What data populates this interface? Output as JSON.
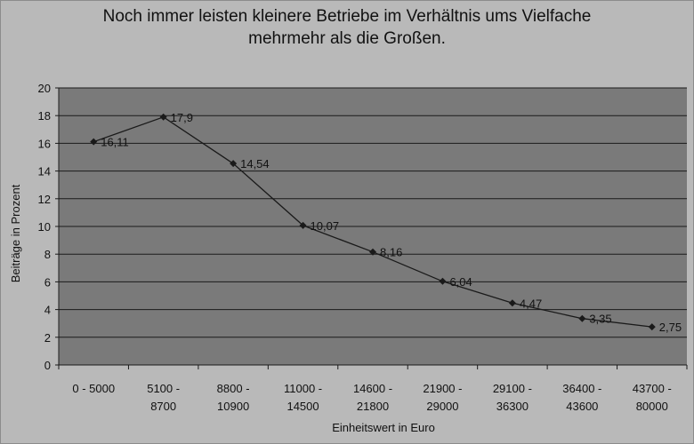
{
  "chart_data": {
    "type": "line",
    "title_line1": "Noch immer leisten kleinere Betriebe im Verhältnis ums Vielfache",
    "title_line2": "mehrmehr als die Großen.",
    "xlabel": "Einheitswert  in Euro",
    "ylabel": "Beiträge  in  Prozent",
    "categories": [
      [
        "0 - 5000",
        ""
      ],
      [
        "5100 -",
        "8700"
      ],
      [
        "8800 -",
        "10900"
      ],
      [
        "11000 -",
        "14500"
      ],
      [
        "14600 -",
        "21800"
      ],
      [
        "21900 -",
        "29000"
      ],
      [
        "29100 -",
        "36300"
      ],
      [
        "36400 -",
        "43600"
      ],
      [
        "43700 -",
        "80000"
      ]
    ],
    "values": [
      16.11,
      17.9,
      14.54,
      10.07,
      8.16,
      6.04,
      4.47,
      3.35,
      2.75
    ],
    "data_labels": [
      "16,11",
      "17,9",
      "14,54",
      "10,07",
      "8,16",
      "6,04",
      "4,47",
      "3,35",
      "2,75"
    ],
    "ylim": [
      0,
      20
    ],
    "yticks": [
      0,
      2,
      4,
      6,
      8,
      10,
      12,
      14,
      16,
      18,
      20
    ],
    "grid": true,
    "legend": "none",
    "colors": {
      "plot_background": "#7a7a7a",
      "page_background": "#b9b9b9",
      "gridline": "#1a1a1a",
      "line": "#1a1a1a",
      "marker": "#1a1a1a"
    }
  }
}
